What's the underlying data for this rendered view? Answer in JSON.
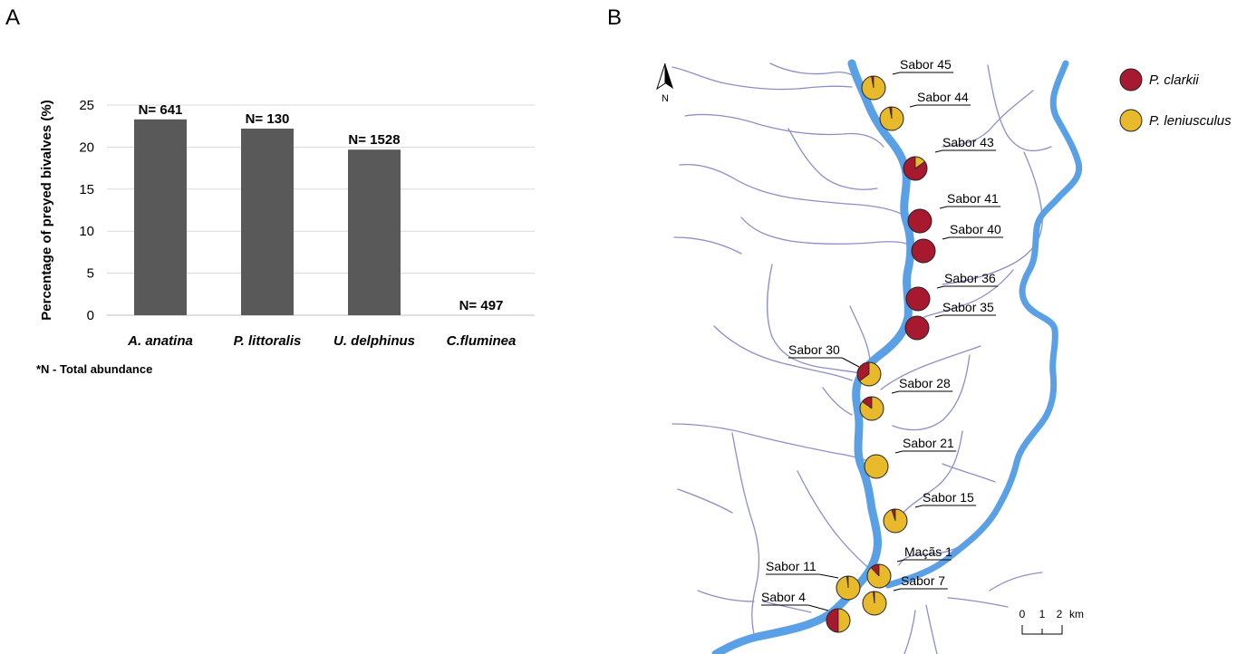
{
  "panels": {
    "a": "A",
    "b": "B"
  },
  "chart_data": {
    "type": "bar",
    "title": "",
    "xlabel": "",
    "ylabel": "Percentage of preyed bivalves (%)",
    "ylim": [
      0,
      25
    ],
    "yticks": [
      0,
      5,
      10,
      15,
      20,
      25
    ],
    "grid": true,
    "categories": [
      "A. anatina",
      "P. littoralis",
      "U. delphinus",
      "C.fluminea"
    ],
    "values": [
      23.3,
      22.2,
      19.7,
      0
    ],
    "data_labels": [
      "N= 641",
      "N= 130",
      "N= 1528",
      "N= 497"
    ],
    "bar_color": "#595959",
    "footnote": "*N - Total abundance"
  },
  "map": {
    "north_label": "N",
    "legend": [
      {
        "label": "P. clarkii",
        "color": "#a6192e"
      },
      {
        "label": "P. leniusculus",
        "color": "#e8b92a"
      }
    ],
    "scale": {
      "ticks": [
        "0",
        "1",
        "2"
      ],
      "unit": "km"
    },
    "river_color": "#5aa0e6",
    "stream_color": "#8e8ec8",
    "sites": [
      {
        "name": "Sabor 45",
        "clarkii_fraction": 0.03
      },
      {
        "name": "Sabor 44",
        "clarkii_fraction": 0.03
      },
      {
        "name": "Sabor 43",
        "clarkii_fraction": 0.85
      },
      {
        "name": "Sabor 41",
        "clarkii_fraction": 1.0
      },
      {
        "name": "Sabor 40",
        "clarkii_fraction": 1.0
      },
      {
        "name": "Sabor 36",
        "clarkii_fraction": 1.0
      },
      {
        "name": "Sabor 35",
        "clarkii_fraction": 1.0
      },
      {
        "name": "Sabor 30",
        "clarkii_fraction": 0.35
      },
      {
        "name": "Sabor 28",
        "clarkii_fraction": 0.15
      },
      {
        "name": "Sabor 21",
        "clarkii_fraction": 0.0
      },
      {
        "name": "Sabor 15",
        "clarkii_fraction": 0.05
      },
      {
        "name": "Maçãs 1",
        "clarkii_fraction": 0.12
      },
      {
        "name": "Sabor 11",
        "clarkii_fraction": 0.02
      },
      {
        "name": "Sabor 7",
        "clarkii_fraction": 0.02
      },
      {
        "name": "Sabor 4",
        "clarkii_fraction": 0.5
      }
    ]
  }
}
